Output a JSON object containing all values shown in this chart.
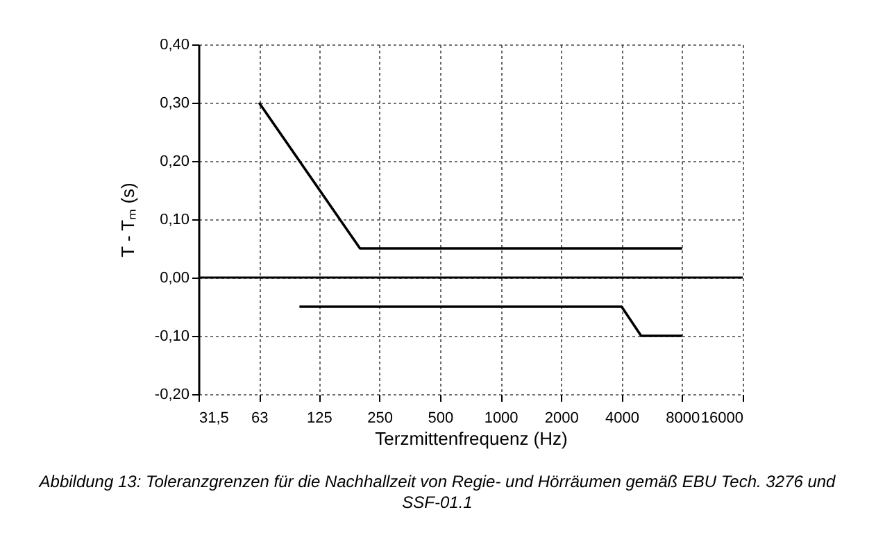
{
  "chart_data": {
    "type": "line",
    "xlabel": "Terzmittenfrequenz (Hz)",
    "ylabel": "T - Tₘ (s)",
    "annotations": [
      "Abbildung 13: Toleranzgrenzen für die Nachhallzeit von Regie- und Hörräumen gemäß EBU Tech. 3276 und SSF-01.1"
    ],
    "xlim": [
      31.5,
      16000
    ],
    "xticks": [
      {
        "value": 31.5,
        "label": "31,5"
      },
      63,
      125,
      250,
      500,
      1000,
      2000,
      4000,
      8000,
      16000
    ],
    "ylim": [
      -0.2,
      0.4
    ],
    "yticks": [
      {
        "value": -0.2,
        "label": "-0,20"
      },
      {
        "value": -0.1,
        "label": "-0,10"
      },
      {
        "value": 0,
        "label": "0,00"
      },
      {
        "value": 0.1,
        "label": "0,10"
      },
      {
        "value": 0.2,
        "label": "0,20"
      },
      {
        "value": 0.3,
        "label": "0,30"
      },
      {
        "value": 0.4,
        "label": "0,40"
      }
    ],
    "log": "x",
    "grid": true,
    "legend": false,
    "marker": "none",
    "line_style": "solid",
    "ref_lines": [
      {
        "axis": "y",
        "value": 0,
        "color": "#000000"
      }
    ],
    "series": [
      {
        "color": "#000000",
        "x": [
          63,
          200,
          8000
        ],
        "values": [
          0.3,
          0.05,
          0.05
        ]
      },
      {
        "color": "#000000",
        "x": [
          100,
          4000,
          5000,
          8000
        ],
        "values": [
          -0.05,
          -0.05,
          -0.1,
          -0.1
        ]
      }
    ]
  }
}
